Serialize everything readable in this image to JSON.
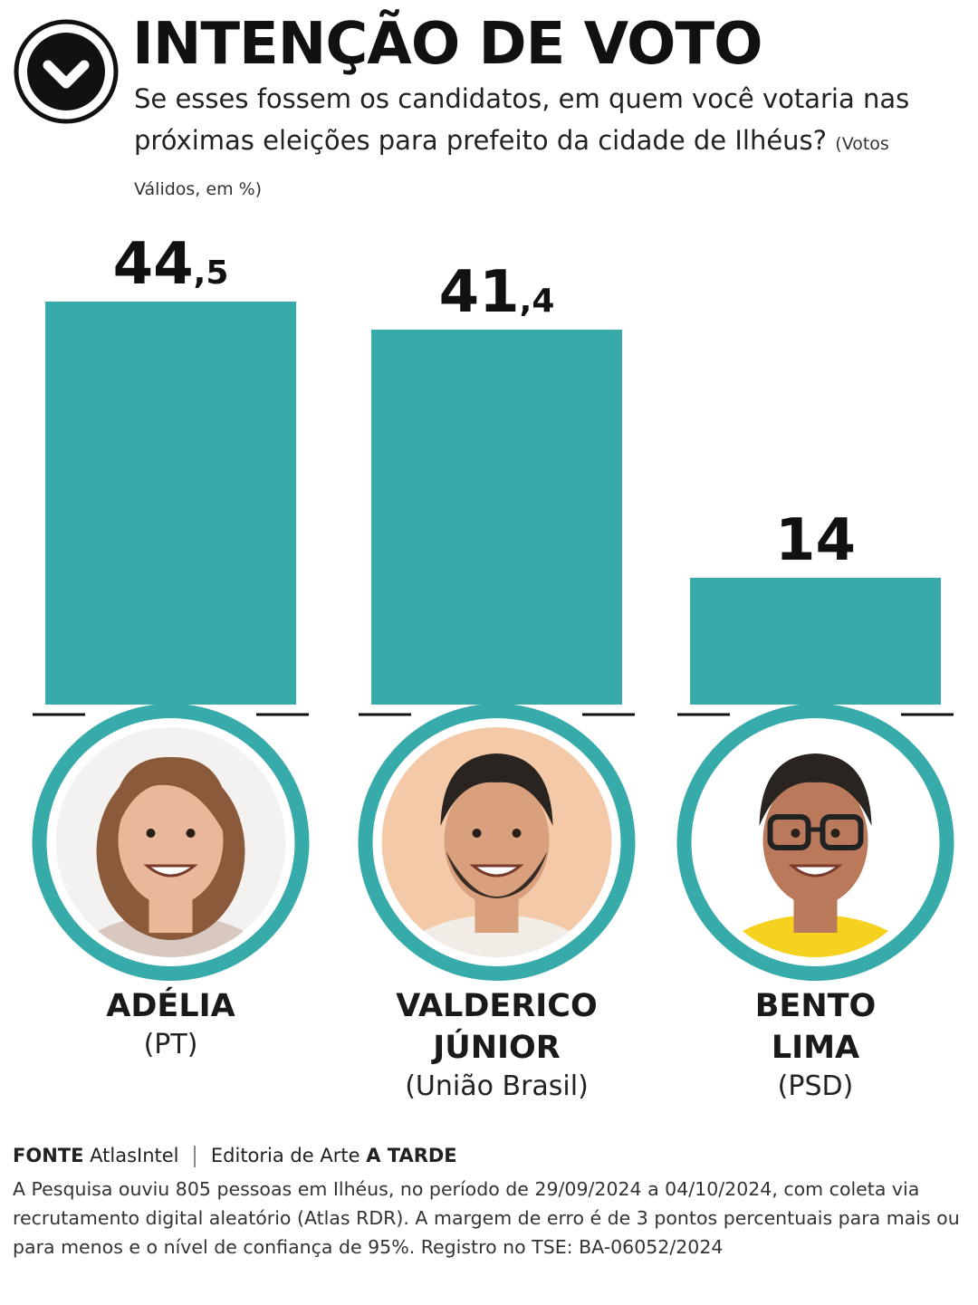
{
  "header": {
    "title": "INTENÇÃO DE VOTO",
    "subtitle": "Se esses fossem os candidatos, em quem você votaria nas próximas eleições para prefeito da cidade de Ilhéus?",
    "subtitle_note": "(Votos Válidos, em %)",
    "logo_icon": "checkmark-circle-icon"
  },
  "colors": {
    "bar": "#37aba9",
    "ring": "#37aba9",
    "text": "#111111"
  },
  "chart_data": {
    "type": "bar",
    "title": "INTENÇÃO DE VOTO",
    "categories": [
      "ADÉLIA",
      "VALDERICO JÚNIOR",
      "BENTO LIMA"
    ],
    "values": [
      44.5,
      41.4,
      14
    ],
    "value_labels": [
      {
        "int": "44",
        "dec": ",5"
      },
      {
        "int": "41",
        "dec": ",4"
      },
      {
        "int": "14",
        "dec": ""
      }
    ],
    "ylim": [
      0,
      50
    ],
    "grid": false,
    "legend": "none"
  },
  "candidates": [
    {
      "name_lines": [
        "ADÉLIA"
      ],
      "party": "(PT)",
      "photo_icon": "woman-portrait-icon"
    },
    {
      "name_lines": [
        "VALDERICO",
        "JÚNIOR"
      ],
      "party": "(União Brasil)",
      "photo_icon": "man-portrait-icon"
    },
    {
      "name_lines": [
        "BENTO",
        "LIMA"
      ],
      "party": "(PSD)",
      "photo_icon": "man-glasses-portrait-icon"
    }
  ],
  "footer": {
    "source_label": "FONTE",
    "source_name": "AtlasIntel",
    "credit_prefix": "Editoria de Arte",
    "credit_brand": "A TARDE",
    "methodology": "A Pesquisa ouviu 805 pessoas em Ilhéus, no período de 29/09/2024 a 04/10/2024, com coleta via recrutamento digital aleatório (Atlas RDR). A margem de erro é de 3 pontos percentuais para mais ou para menos e o nível de confiança de 95%. Registro no TSE: BA-06052/2024"
  }
}
